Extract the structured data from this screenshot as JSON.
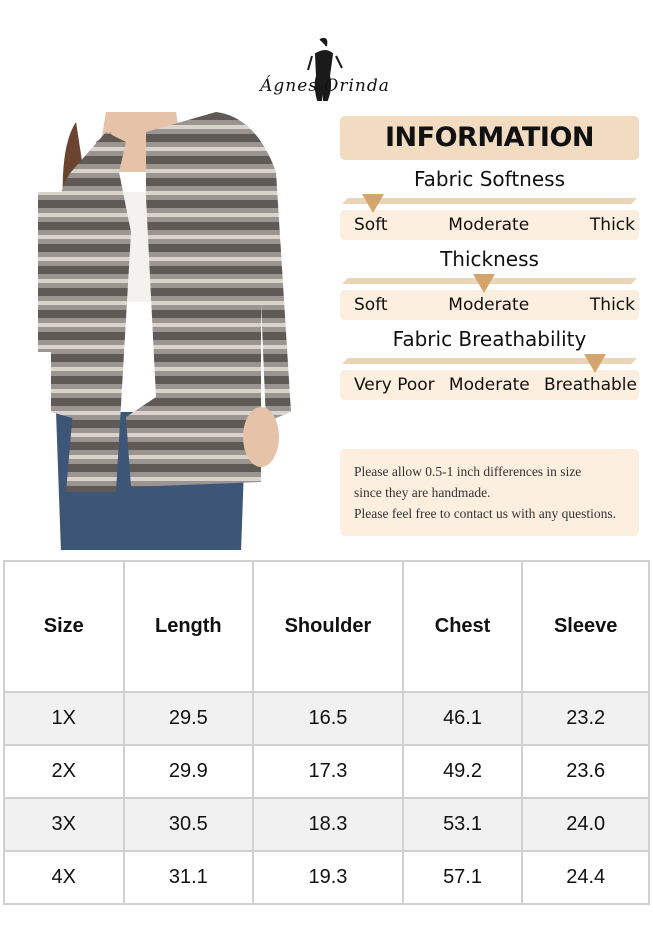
{
  "brand": {
    "name": "Ágnes Orinda"
  },
  "info": {
    "title": "INFORMATION",
    "colors": {
      "header_bg": "#f1dcc1",
      "bar": "#ecd5b6",
      "label_bg": "#fcefdf",
      "marker": "#d4a56d"
    },
    "metrics": [
      {
        "title": "Fabric Softness",
        "labels": [
          "Soft",
          "Moderate",
          "Thick"
        ],
        "level_index": 0
      },
      {
        "title": "Thickness",
        "labels": [
          "Soft",
          "Moderate",
          "Thick"
        ],
        "level_index": 1
      },
      {
        "title": "Fabric Breathability",
        "labels": [
          "Very Poor",
          "Moderate",
          "Breathable"
        ],
        "level_index": 2
      }
    ],
    "note": [
      "Please allow 0.5-1 inch differences in size",
      "since they are handmade.",
      "Please feel free to contact us with any questions."
    ]
  },
  "table": {
    "headers": [
      "Size",
      "Length",
      "Shoulder",
      "Chest",
      "Sleeve"
    ],
    "rows": [
      [
        "1X",
        "29.5",
        "16.5",
        "46.1",
        "23.2"
      ],
      [
        "2X",
        "29.9",
        "17.3",
        "49.2",
        "23.6"
      ],
      [
        "3X",
        "30.5",
        "18.3",
        "53.1",
        "24.0"
      ],
      [
        "4X",
        "31.1",
        "19.3",
        "57.1",
        "24.4"
      ]
    ]
  }
}
